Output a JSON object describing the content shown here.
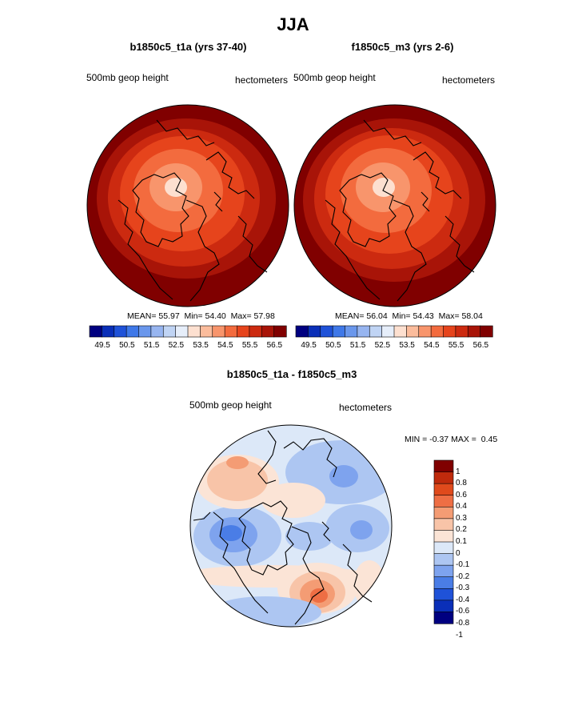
{
  "page": {
    "title": "JJA"
  },
  "colors": {
    "full_scale": [
      "#000080",
      "#0a2fb8",
      "#1f52d8",
      "#3f78e8",
      "#6a97ec",
      "#97b5f0",
      "#c0d4f4",
      "#e6eefa",
      "#fde0d0",
      "#fbbc9c",
      "#f8956c",
      "#f36b3e",
      "#e6441c",
      "#cc2a10",
      "#a81408",
      "#800000"
    ],
    "diff_scale": [
      "#000080",
      "#0a2fb8",
      "#1f52d8",
      "#4a7de6",
      "#7ea3ee",
      "#adc6f2",
      "#dce8f8",
      "#fbe4d6",
      "#f8c4a8",
      "#f49c74",
      "#ee6e44",
      "#e04a1c",
      "#bf2a0c",
      "#800000"
    ],
    "coastline": "#000000"
  },
  "chart_data": [
    {
      "type": "heatmap",
      "projection": "north-polar-stereographic",
      "title": "b1850c5_t1a (yrs 37-40)",
      "left_label": "500mb geop height",
      "right_label": "hectometers",
      "stats": {
        "mean_label": "MEAN=",
        "mean": "55.97",
        "min_label": "Min=",
        "min": "54.40",
        "max_label": "Max=",
        "max": "57.98"
      },
      "colorbar": {
        "orientation": "horizontal",
        "levels": [
          49.0,
          49.5,
          50.0,
          50.5,
          51.0,
          51.5,
          52.0,
          52.5,
          53.0,
          53.5,
          54.0,
          54.5,
          55.0,
          55.5,
          56.0,
          56.5
        ],
        "tick_labels": [
          "49.5",
          "50.5",
          "51.5",
          "52.5",
          "53.5",
          "54.5",
          "55.5",
          "56.5"
        ]
      }
    },
    {
      "type": "heatmap",
      "projection": "north-polar-stereographic",
      "title": "f1850c5_m3 (yrs 2-6)",
      "left_label": "500mb geop height",
      "right_label": "hectometers",
      "stats": {
        "mean_label": "MEAN=",
        "mean": "56.04",
        "min_label": "Min=",
        "min": "54.43",
        "max_label": "Max=",
        "max": "58.04"
      },
      "colorbar": {
        "orientation": "horizontal",
        "levels": [
          49.0,
          49.5,
          50.0,
          50.5,
          51.0,
          51.5,
          52.0,
          52.5,
          53.0,
          53.5,
          54.0,
          54.5,
          55.0,
          55.5,
          56.0,
          56.5
        ],
        "tick_labels": [
          "49.5",
          "50.5",
          "51.5",
          "52.5",
          "53.5",
          "54.5",
          "55.5",
          "56.5"
        ]
      }
    },
    {
      "type": "heatmap",
      "projection": "north-polar-stereographic",
      "title": "b1850c5_t1a - f1850c5_m3",
      "left_label": "500mb geop height",
      "right_label": "hectometers",
      "stats": {
        "min_label": "MIN =",
        "min": "-0.37",
        "max_label": "MAX =",
        "max": "0.45"
      },
      "colorbar": {
        "orientation": "vertical",
        "tick_labels": [
          "1",
          "0.8",
          "0.6",
          "0.4",
          "0.3",
          "0.2",
          "0.1",
          "0",
          "-0.1",
          "-0.2",
          "-0.3",
          "-0.4",
          "-0.6",
          "-0.8",
          "-1"
        ]
      }
    }
  ]
}
